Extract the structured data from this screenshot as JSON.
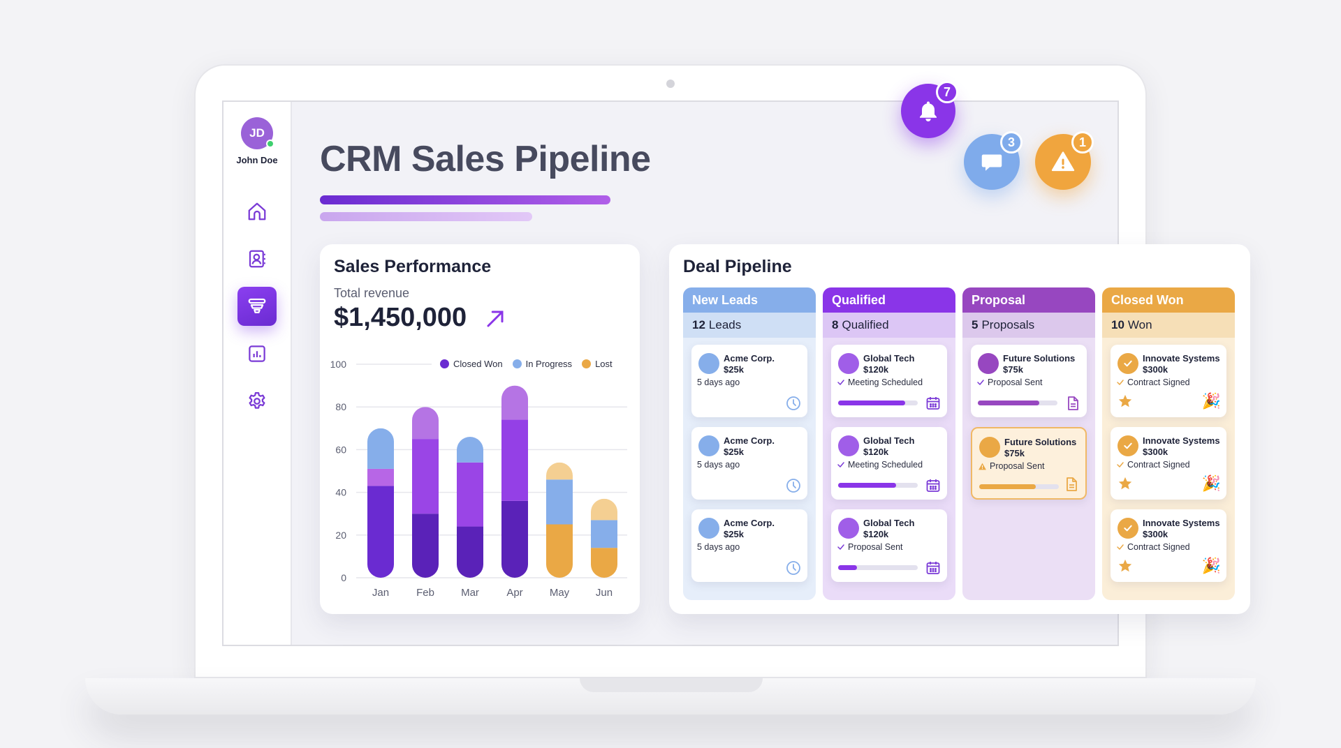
{
  "user": {
    "initials": "JD",
    "name": "John Doe",
    "status": "online"
  },
  "sidebar": {
    "items": [
      {
        "name": "home",
        "icon": "home-icon",
        "active": false
      },
      {
        "name": "contacts",
        "icon": "contact-book-icon",
        "active": false
      },
      {
        "name": "pipeline",
        "icon": "funnel-icon",
        "active": true
      },
      {
        "name": "reports",
        "icon": "bar-chart-icon",
        "active": false
      },
      {
        "name": "settings",
        "icon": "gear-icon",
        "active": false
      }
    ]
  },
  "header": {
    "title": "CRM Sales Pipeline"
  },
  "notifications": {
    "bell": {
      "icon": "bell-icon",
      "count": "7",
      "color": "#8a35e8"
    },
    "messages": {
      "icon": "chat-icon",
      "count": "3",
      "color": "#7fabeb"
    },
    "alerts": {
      "icon": "warning-icon",
      "count": "1",
      "color": "#f0a53e"
    }
  },
  "sales": {
    "title": "Sales Performance",
    "revenue_label": "Total revenue",
    "revenue_value": "$1,450,000",
    "trend_icon": "arrow-up-right-icon"
  },
  "chart_data": {
    "type": "bar",
    "stacked": true,
    "title": "Sales Performance",
    "categories": [
      "Jan",
      "Feb",
      "Mar",
      "Apr",
      "May",
      "Jun"
    ],
    "series": [
      {
        "name": "Closed Won",
        "color": "#6a2bd1",
        "values": [
          51,
          80,
          54,
          90,
          0,
          0
        ]
      },
      {
        "name": "In Progress",
        "color": "#86aeea",
        "values": [
          19,
          0,
          12,
          0,
          20,
          13
        ]
      },
      {
        "name": "Lost",
        "color": "#eaa845",
        "values": [
          0,
          0,
          0,
          0,
          34,
          23
        ]
      }
    ],
    "segments_detail": {
      "Jan": [
        [
          0,
          43,
          "#6a2bd1"
        ],
        [
          43,
          51,
          "#b766e6"
        ],
        [
          51,
          70,
          "#86aeea"
        ]
      ],
      "Feb": [
        [
          0,
          30,
          "#5a22b8"
        ],
        [
          30,
          65,
          "#9a45e6"
        ],
        [
          65,
          80,
          "#b574e4"
        ]
      ],
      "Mar": [
        [
          0,
          24,
          "#5a22b8"
        ],
        [
          24,
          54,
          "#9a45e6"
        ],
        [
          54,
          66,
          "#86aeea"
        ]
      ],
      "Apr": [
        [
          0,
          36,
          "#5a22b8"
        ],
        [
          36,
          74,
          "#9440e6"
        ],
        [
          74,
          90,
          "#b574e4"
        ]
      ],
      "May": [
        [
          0,
          25,
          "#eaa845"
        ],
        [
          25,
          46,
          "#86aeea"
        ],
        [
          46,
          54,
          "#f4cf92"
        ]
      ],
      "Jun": [
        [
          0,
          14,
          "#eaa845"
        ],
        [
          14,
          27,
          "#86aeea"
        ],
        [
          27,
          37,
          "#f4cf92"
        ]
      ]
    },
    "xlabel": "",
    "ylabel": "",
    "ylim": [
      0,
      100
    ],
    "yticks": [
      0,
      20,
      40,
      60,
      80,
      100
    ],
    "grid": true,
    "legend_position": "top-right"
  },
  "pipeline": {
    "title": "Deal Pipeline",
    "columns": [
      {
        "title": "New Leads",
        "count": "12",
        "count_label": "Leads",
        "head_color": "#86aeea",
        "count_bg": "#cfdff5",
        "body_bg": "#e6eefa",
        "deals": [
          {
            "company": "Acme Corp.",
            "amount": "$25k",
            "status": "5 days ago",
            "avatar_color": "#86aeea",
            "icon": "clock-icon"
          },
          {
            "company": "Acme Corp.",
            "amount": "$25k",
            "status": "5 days ago",
            "avatar_color": "#86aeea",
            "icon": "clock-icon"
          },
          {
            "company": "Acme Corp.",
            "amount": "$25k",
            "status": "5 days ago",
            "avatar_color": "#86aeea",
            "icon": "clock-icon"
          }
        ]
      },
      {
        "title": "Qualified",
        "count": "8",
        "count_label": "Qualified",
        "head_color": "#8a35e8",
        "count_bg": "#dcc6f5",
        "body_bg": "#eadcf8",
        "deals": [
          {
            "company": "Global Tech",
            "amount": "$120k",
            "status": "Meeting Scheduled",
            "avatar_color": "#a05ee8",
            "progress": 84,
            "icon": "calendar-icon"
          },
          {
            "company": "Global Tech",
            "amount": "$120k",
            "status": "Meeting Scheduled",
            "avatar_color": "#a05ee8",
            "progress": 73,
            "icon": "calendar-icon"
          },
          {
            "company": "Global Tech",
            "amount": "$120k",
            "status": "Proposal Sent",
            "avatar_color": "#a05ee8",
            "progress": 24,
            "icon": "calendar-icon"
          }
        ]
      },
      {
        "title": "Proposal",
        "count": "5",
        "count_label": "Proposals",
        "head_color": "#9747c0",
        "count_bg": "#dcc8ec",
        "body_bg": "#ebdff5",
        "deals": [
          {
            "company": "Future Solutions",
            "amount": "$75k",
            "status": "Proposal Sent",
            "avatar_color": "#9747c0",
            "progress": 77,
            "icon": "document-icon"
          },
          {
            "company": "Future Solutions",
            "amount": "$75k",
            "status": "Proposal Sent",
            "avatar_color": "#eaa845",
            "progress": 71,
            "icon": "document-icon",
            "warning": true
          }
        ]
      },
      {
        "title": "Closed Won",
        "count": "10",
        "count_label": "Won",
        "head_color": "#eaa845",
        "count_bg": "#f6dfb7",
        "body_bg": "#fbeed8",
        "deals": [
          {
            "company": "Innovate Systems",
            "amount": "$300k",
            "status": "Contract Signed",
            "avatar_color": "#eaa845",
            "icon": "party-popper-icon",
            "star": true
          },
          {
            "company": "Innovate Systems",
            "amount": "$300k",
            "status": "Contract Signed",
            "avatar_color": "#eaa845",
            "icon": "party-popper-icon",
            "star": true
          },
          {
            "company": "Innovate Systems",
            "amount": "$300k",
            "status": "Contract Signed",
            "avatar_color": "#eaa845",
            "icon": "party-popper-icon",
            "star": true
          }
        ]
      }
    ]
  }
}
